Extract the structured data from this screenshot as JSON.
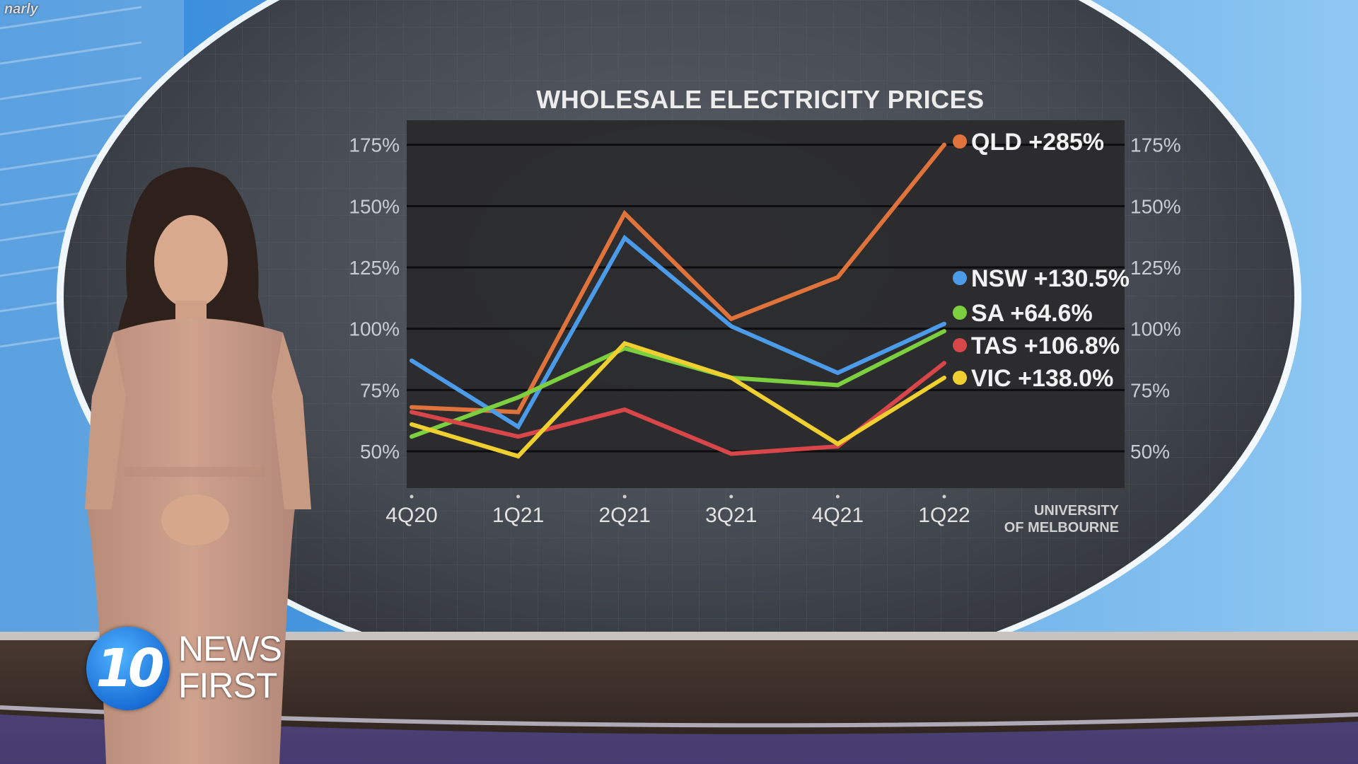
{
  "corner_caption": "narly",
  "logo": {
    "number": "10",
    "line1": "NEWS",
    "line2": "FIRST"
  },
  "source": {
    "line1": "UNIVERSITY",
    "line2": "OF MELBOURNE"
  },
  "colors": {
    "QLD": "#e0733b",
    "NSW": "#4b9be8",
    "SA": "#7ccf3f",
    "TAS": "#d8464a",
    "VIC": "#f0d030",
    "plot_bg": "#2b2b2d"
  },
  "chart_data": {
    "type": "line",
    "title": "WHOLESALE ELECTRICITY PRICES",
    "categories": [
      "4Q20",
      "1Q21",
      "2Q21",
      "3Q21",
      "4Q21",
      "1Q22"
    ],
    "y_ticks": [
      "175%",
      "150%",
      "125%",
      "100%",
      "75%",
      "50%"
    ],
    "y_tick_values": [
      175,
      150,
      125,
      100,
      75,
      50
    ],
    "ylim": [
      35,
      185
    ],
    "grid": true,
    "series": [
      {
        "name": "QLD",
        "label": "QLD +285%",
        "values": [
          68,
          66,
          147,
          104,
          121,
          175
        ]
      },
      {
        "name": "NSW",
        "label": "NSW +130.5%",
        "values": [
          87,
          60,
          137,
          101,
          82,
          102
        ]
      },
      {
        "name": "SA",
        "label": "SA +64.6%",
        "values": [
          56,
          72,
          92,
          80,
          77,
          99
        ]
      },
      {
        "name": "TAS",
        "label": "TAS +106.8%",
        "values": [
          66,
          56,
          67,
          49,
          52,
          86
        ]
      },
      {
        "name": "VIC",
        "label": "VIC +138.0%",
        "values": [
          61,
          48,
          94,
          80,
          53,
          80
        ]
      }
    ]
  }
}
